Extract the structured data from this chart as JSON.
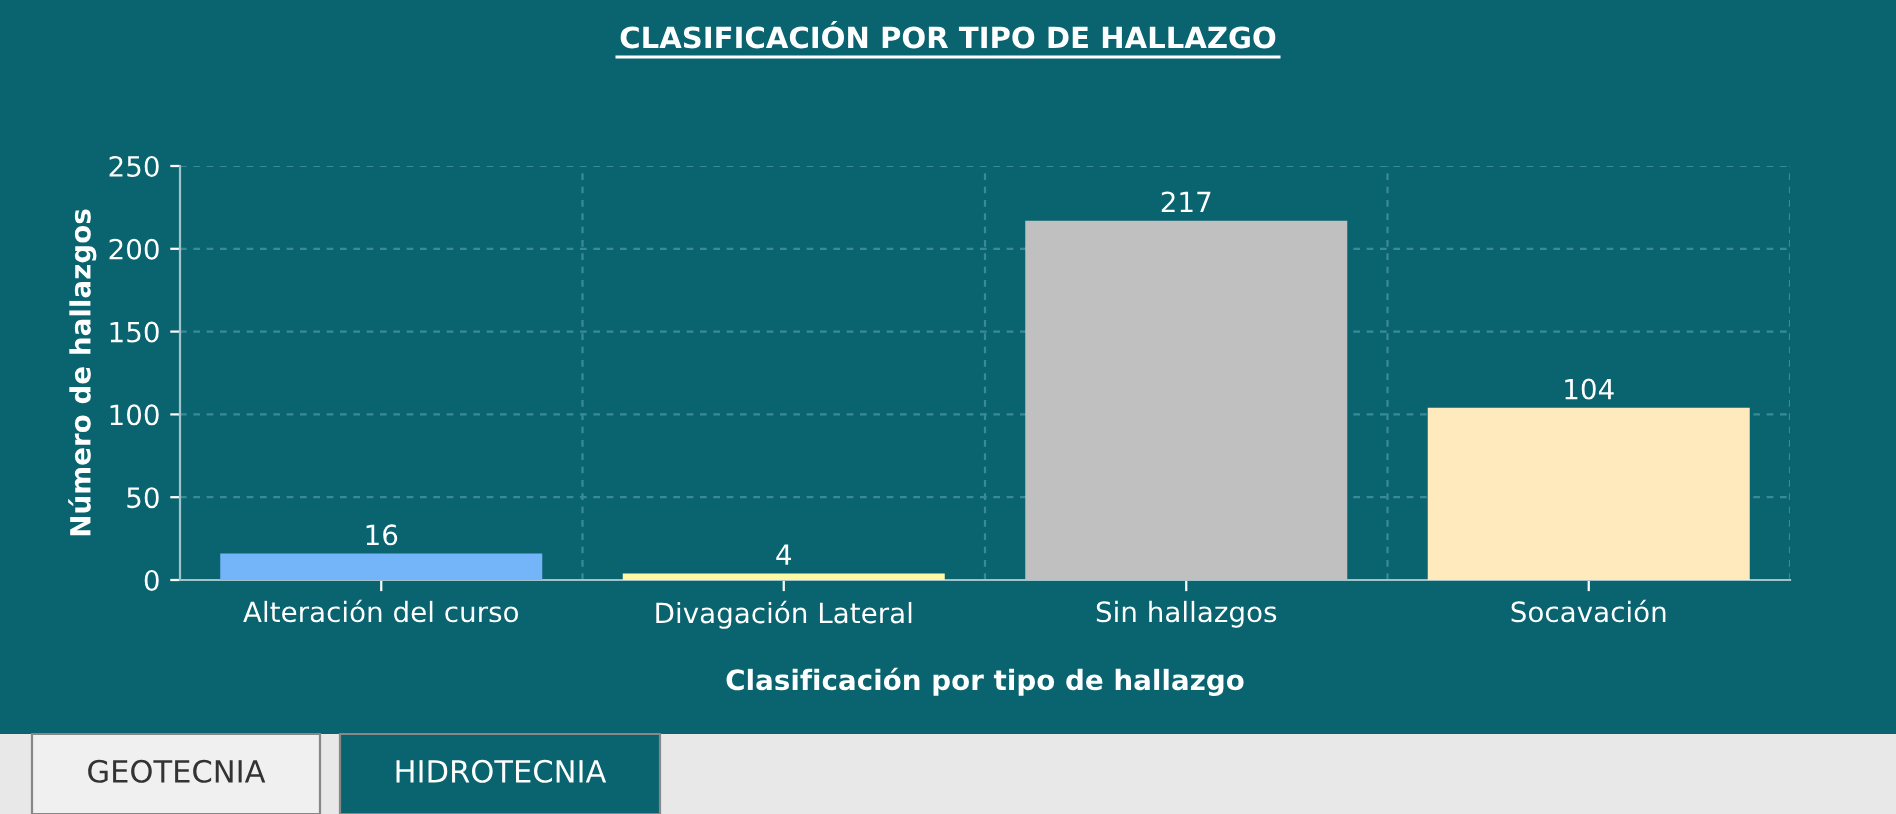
{
  "chart_data": {
    "type": "bar",
    "title": "CLASIFICACIÓN POR TIPO DE HALLAZGO",
    "xlabel": "Clasificación por tipo de hallazgo",
    "ylabel": "Número de hallazgos",
    "categories": [
      "Alteración del curso",
      "Divagación Lateral",
      "Sin hallazgos",
      "Socavación"
    ],
    "values": [
      16,
      4,
      217,
      104
    ],
    "colors": [
      "#74b4f8",
      "#fff9a6",
      "#c0c0c0",
      "#ffeabe"
    ],
    "ylim": [
      0,
      250
    ],
    "yticks": [
      0,
      50,
      100,
      150,
      200,
      250
    ],
    "grid": true,
    "data_labels": true,
    "annotations": [
      "GEOTECNIA",
      "HIDROTECNIA"
    ]
  }
}
